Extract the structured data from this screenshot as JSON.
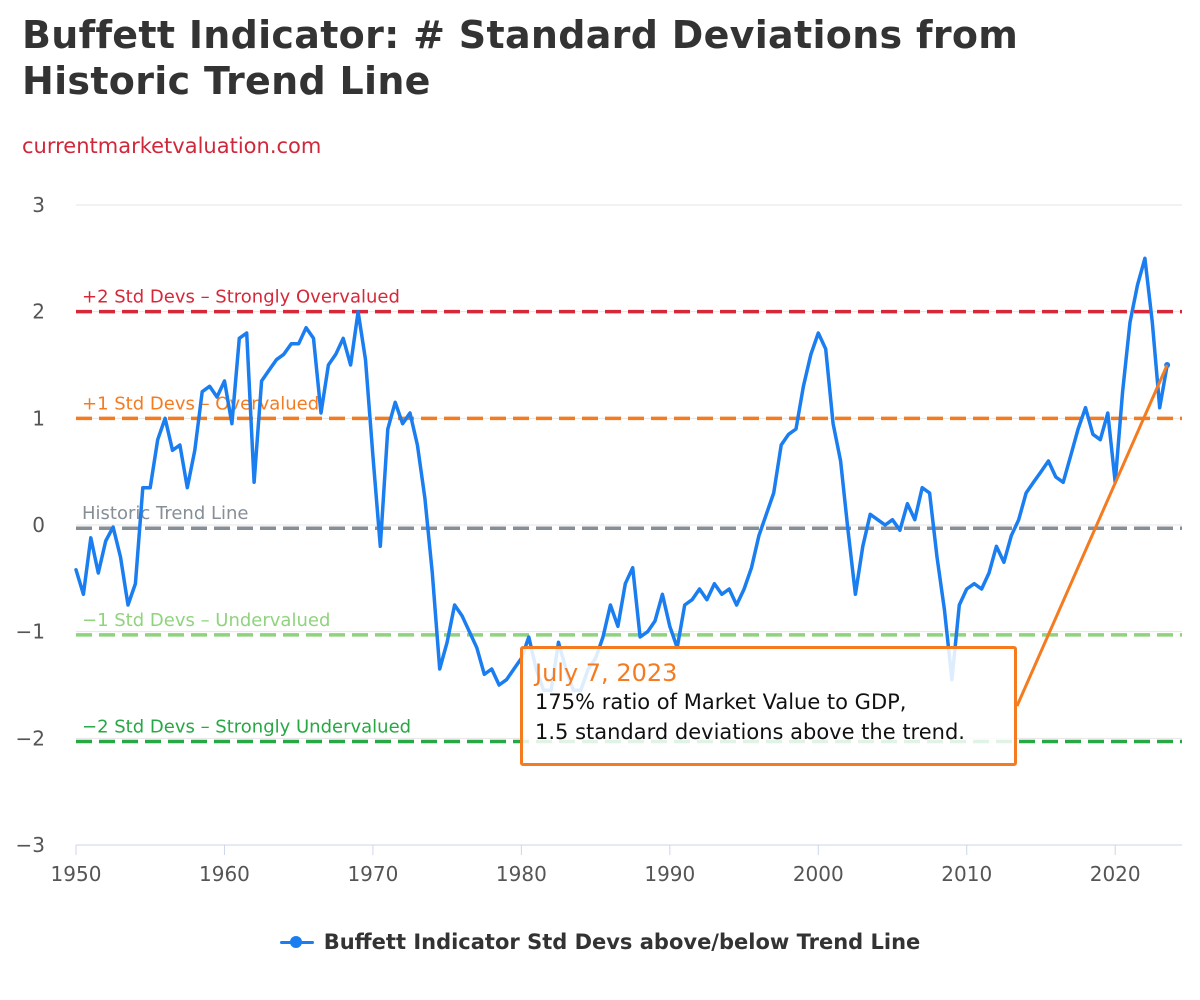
{
  "title": "Buffett Indicator: # Standard Deviations from Historic Trend Line",
  "subtitle": "currentmarketvaluation.com",
  "colors": {
    "series": "#1a7ef0",
    "strongly_overvalued": "#d62839",
    "overvalued": "#f47b20",
    "trend": "#868e96",
    "undervalued": "#90d37e",
    "strongly_undervalued": "#27a844",
    "text": "#333333"
  },
  "legend": {
    "label": "Buffett Indicator Std Devs above/below Trend Line"
  },
  "callout": {
    "date": "July 7, 2023",
    "line1": "175% ratio of Market Value to GDP,",
    "line2": "1.5 standard deviations above the trend."
  },
  "chart_data": {
    "type": "line",
    "title": "Buffett Indicator: # Standard Deviations from Historic Trend Line",
    "xlabel": "",
    "ylabel": "",
    "xlim": [
      1950,
      2024.5
    ],
    "ylim": [
      -3,
      3
    ],
    "x_ticks": [
      "1950",
      "1960",
      "1970",
      "1980",
      "1990",
      "2000",
      "2010",
      "2020"
    ],
    "y_ticks": [
      "3",
      "2",
      "1",
      "0",
      "−1",
      "−2",
      "−3"
    ],
    "grid": true,
    "legend_position": "bottom",
    "reference_lines": [
      {
        "label": "+2 Std Devs – Strongly Overvalued",
        "value": 2,
        "color": "#d62839"
      },
      {
        "label": "+1 Std Devs – Overvalued",
        "value": 1,
        "color": "#f47b20"
      },
      {
        "label": "Historic Trend Line",
        "value": -0.03,
        "color": "#868e96"
      },
      {
        "label": "−1 Std Devs – Undervalued",
        "value": -1.03,
        "color": "#90d37e"
      },
      {
        "label": "−2 Std Devs – Strongly Undervalued",
        "value": -2.03,
        "color": "#27a844"
      }
    ],
    "series": [
      {
        "name": "Buffett Indicator Std Devs above/below Trend Line",
        "x": [
          1950.0,
          1950.5,
          1951.0,
          1951.5,
          1952.0,
          1952.5,
          1953.0,
          1953.5,
          1954.0,
          1954.5,
          1955.0,
          1955.5,
          1956.0,
          1956.5,
          1957.0,
          1957.5,
          1958.0,
          1958.5,
          1959.0,
          1959.5,
          1960.0,
          1960.5,
          1961.0,
          1961.5,
          1962.0,
          1962.5,
          1963.0,
          1963.5,
          1964.0,
          1964.5,
          1965.0,
          1965.5,
          1966.0,
          1966.5,
          1967.0,
          1967.5,
          1968.0,
          1968.5,
          1969.0,
          1969.5,
          1970.0,
          1970.5,
          1971.0,
          1971.5,
          1972.0,
          1972.5,
          1973.0,
          1973.5,
          1974.0,
          1974.5,
          1975.0,
          1975.5,
          1976.0,
          1976.5,
          1977.0,
          1977.5,
          1978.0,
          1978.5,
          1979.0,
          1979.5,
          1980.0,
          1980.5,
          1981.0,
          1981.5,
          1982.0,
          1982.5,
          1983.0,
          1983.5,
          1984.0,
          1984.5,
          1985.0,
          1985.5,
          1986.0,
          1986.5,
          1987.0,
          1987.5,
          1988.0,
          1988.5,
          1989.0,
          1989.5,
          1990.0,
          1990.5,
          1991.0,
          1991.5,
          1992.0,
          1992.5,
          1993.0,
          1993.5,
          1994.0,
          1994.5,
          1995.0,
          1995.5,
          1996.0,
          1996.5,
          1997.0,
          1997.5,
          1998.0,
          1998.5,
          1999.0,
          1999.5,
          2000.0,
          2000.5,
          2001.0,
          2001.5,
          2002.0,
          2002.5,
          2003.0,
          2003.5,
          2004.0,
          2004.5,
          2005.0,
          2005.5,
          2006.0,
          2006.5,
          2007.0,
          2007.5,
          2008.0,
          2008.5,
          2009.0,
          2009.5,
          2010.0,
          2010.5,
          2011.0,
          2011.5,
          2012.0,
          2012.5,
          2013.0,
          2013.5,
          2014.0,
          2014.5,
          2015.0,
          2015.5,
          2016.0,
          2016.5,
          2017.0,
          2017.5,
          2018.0,
          2018.5,
          2019.0,
          2019.5,
          2020.0,
          2020.5,
          2021.0,
          2021.5,
          2022.0,
          2022.5,
          2023.0,
          2023.5
        ],
        "values": [
          -0.42,
          -0.65,
          -0.12,
          -0.45,
          -0.15,
          -0.02,
          -0.3,
          -0.75,
          -0.55,
          0.35,
          0.35,
          0.8,
          1.0,
          0.7,
          0.75,
          0.35,
          0.7,
          1.25,
          1.3,
          1.2,
          1.35,
          0.95,
          1.75,
          1.8,
          0.4,
          1.35,
          1.45,
          1.55,
          1.6,
          1.7,
          1.7,
          1.85,
          1.75,
          1.05,
          1.5,
          1.6,
          1.75,
          1.5,
          2.0,
          1.55,
          0.65,
          -0.2,
          0.9,
          1.15,
          0.95,
          1.05,
          0.75,
          0.25,
          -0.45,
          -1.35,
          -1.1,
          -0.75,
          -0.85,
          -1.0,
          -1.15,
          -1.4,
          -1.35,
          -1.5,
          -1.45,
          -1.35,
          -1.25,
          -1.05,
          -1.35,
          -1.55,
          -1.55,
          -1.1,
          -1.35,
          -1.55,
          -1.55,
          -1.35,
          -1.25,
          -1.05,
          -0.75,
          -0.95,
          -0.55,
          -0.4,
          -1.05,
          -1.0,
          -0.9,
          -0.65,
          -0.95,
          -1.15,
          -0.75,
          -0.7,
          -0.6,
          -0.7,
          -0.55,
          -0.65,
          -0.6,
          -0.75,
          -0.6,
          -0.4,
          -0.1,
          0.1,
          0.3,
          0.75,
          0.85,
          0.9,
          1.3,
          1.6,
          1.8,
          1.65,
          0.95,
          0.6,
          -0.05,
          -0.65,
          -0.2,
          0.1,
          0.05,
          0.0,
          0.05,
          -0.05,
          0.2,
          0.05,
          0.35,
          0.3,
          -0.3,
          -0.8,
          -1.45,
          -0.75,
          -0.6,
          -0.55,
          -0.6,
          -0.45,
          -0.2,
          -0.35,
          -0.1,
          0.05,
          0.3,
          0.4,
          0.5,
          0.6,
          0.45,
          0.4,
          0.65,
          0.9,
          1.1,
          0.85,
          0.8,
          1.05,
          0.4,
          1.25,
          1.9,
          2.25,
          2.5,
          1.9,
          1.1,
          1.5
        ]
      }
    ]
  }
}
